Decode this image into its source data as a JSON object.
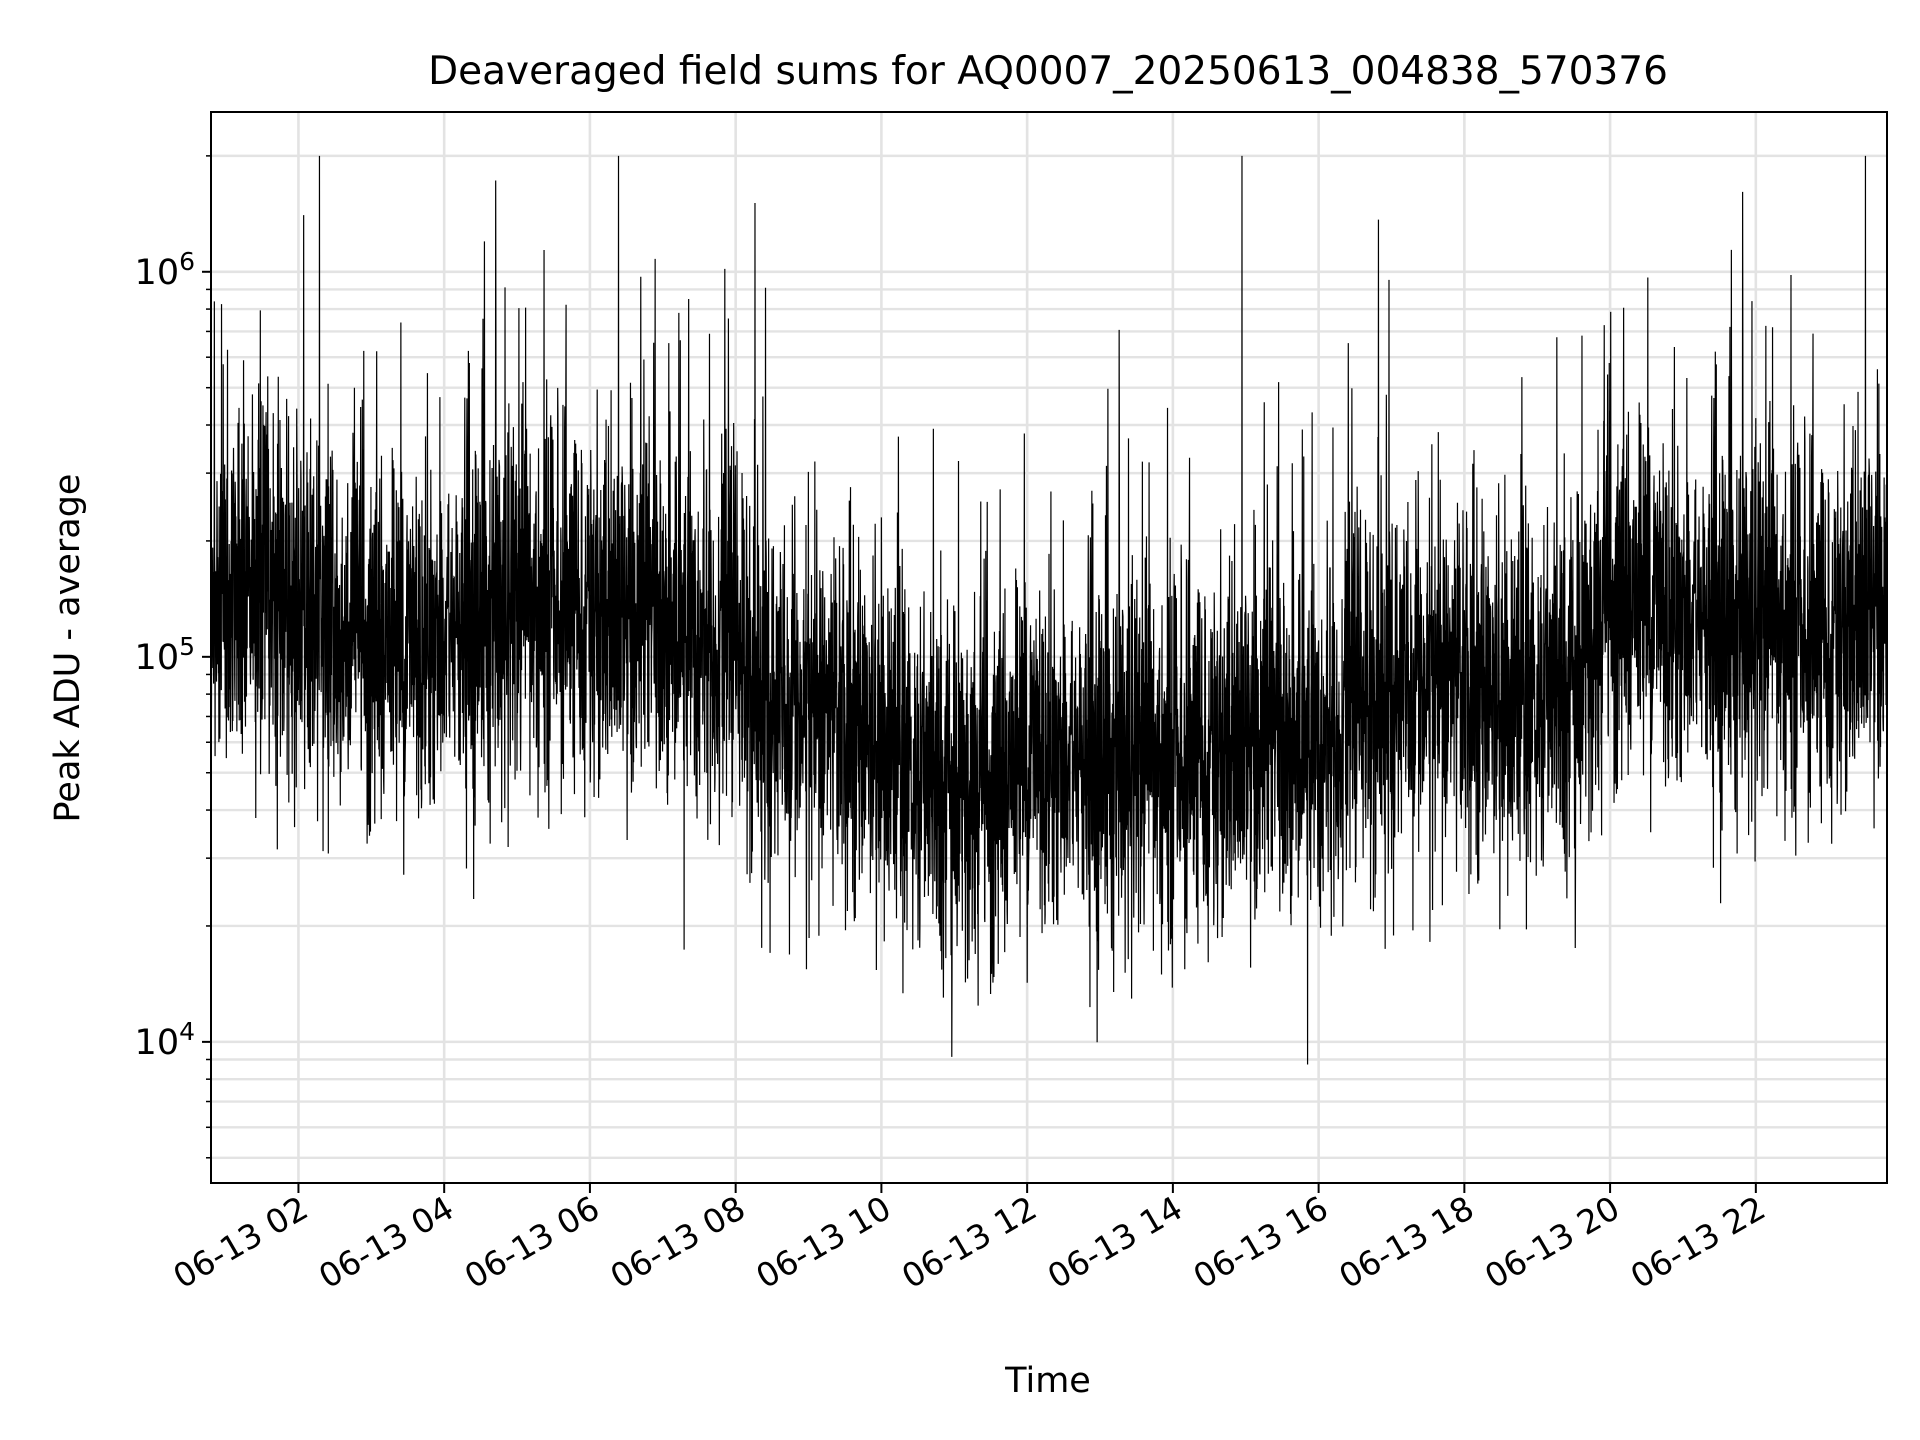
{
  "chart_data": {
    "type": "line",
    "title": "Deaveraged field sums for AQ0007_20250613_004838_570376",
    "xlabel": "Time",
    "ylabel": "Peak ADU - average",
    "y_scale": "log",
    "grid": true,
    "line_color": "#000000",
    "xlim": [
      "2025-06-13 00:48",
      "2025-06-13 23:48"
    ],
    "ylim": [
      4300,
      2600000
    ],
    "x_ticks": [
      {
        "t": "2025-06-13 02:00",
        "label": "06-13 02"
      },
      {
        "t": "2025-06-13 04:00",
        "label": "06-13 04"
      },
      {
        "t": "2025-06-13 06:00",
        "label": "06-13 06"
      },
      {
        "t": "2025-06-13 08:00",
        "label": "06-13 08"
      },
      {
        "t": "2025-06-13 10:00",
        "label": "06-13 10"
      },
      {
        "t": "2025-06-13 12:00",
        "label": "06-13 12"
      },
      {
        "t": "2025-06-13 14:00",
        "label": "06-13 14"
      },
      {
        "t": "2025-06-13 16:00",
        "label": "06-13 16"
      },
      {
        "t": "2025-06-13 18:00",
        "label": "06-13 18"
      },
      {
        "t": "2025-06-13 20:00",
        "label": "06-13 20"
      },
      {
        "t": "2025-06-13 22:00",
        "label": "06-13 22"
      }
    ],
    "y_ticks": [
      {
        "value": 10000,
        "base": "10",
        "exp": "4"
      },
      {
        "value": 100000,
        "base": "10",
        "exp": "5"
      },
      {
        "value": 1000000,
        "base": "10",
        "exp": "6"
      }
    ],
    "series": [
      {
        "x": [
          "2025-06-13 00:48",
          "2025-06-13 01:00",
          "2025-06-13 01:30",
          "2025-06-13 02:00",
          "2025-06-13 02:30",
          "2025-06-13 03:00",
          "2025-06-13 03:30",
          "2025-06-13 04:00",
          "2025-06-13 04:30",
          "2025-06-13 05:00",
          "2025-06-13 05:30",
          "2025-06-13 06:00",
          "2025-06-13 06:30",
          "2025-06-13 07:00",
          "2025-06-13 07:30",
          "2025-06-13 08:00",
          "2025-06-13 08:30",
          "2025-06-13 09:00",
          "2025-06-13 09:30",
          "2025-06-13 10:00",
          "2025-06-13 10:30",
          "2025-06-13 11:00",
          "2025-06-13 11:30",
          "2025-06-13 12:00",
          "2025-06-13 12:30",
          "2025-06-13 13:00",
          "2025-06-13 13:30",
          "2025-06-13 14:00",
          "2025-06-13 14:30",
          "2025-06-13 15:00",
          "2025-06-13 15:30",
          "2025-06-13 16:00",
          "2025-06-13 16:30",
          "2025-06-13 17:00",
          "2025-06-13 17:30",
          "2025-06-13 18:00",
          "2025-06-13 18:30",
          "2025-06-13 19:00",
          "2025-06-13 19:30",
          "2025-06-13 20:00",
          "2025-06-13 20:30",
          "2025-06-13 21:00",
          "2025-06-13 21:30",
          "2025-06-13 22:00",
          "2025-06-13 22:30",
          "2025-06-13 23:00",
          "2025-06-13 23:30",
          "2025-06-13 23:48"
        ],
        "y": [
          140000,
          150000,
          150000,
          130000,
          115000,
          110000,
          115000,
          115000,
          125000,
          130000,
          135000,
          130000,
          125000,
          125000,
          120000,
          110000,
          75000,
          72000,
          68000,
          62000,
          50000,
          45000,
          45000,
          60000,
          55000,
          52000,
          52000,
          52000,
          55000,
          58000,
          60000,
          62000,
          75000,
          85000,
          85000,
          85000,
          80000,
          80000,
          85000,
          140000,
          150000,
          130000,
          120000,
          118000,
          115000,
          110000,
          130000,
          140000
        ]
      }
    ]
  }
}
